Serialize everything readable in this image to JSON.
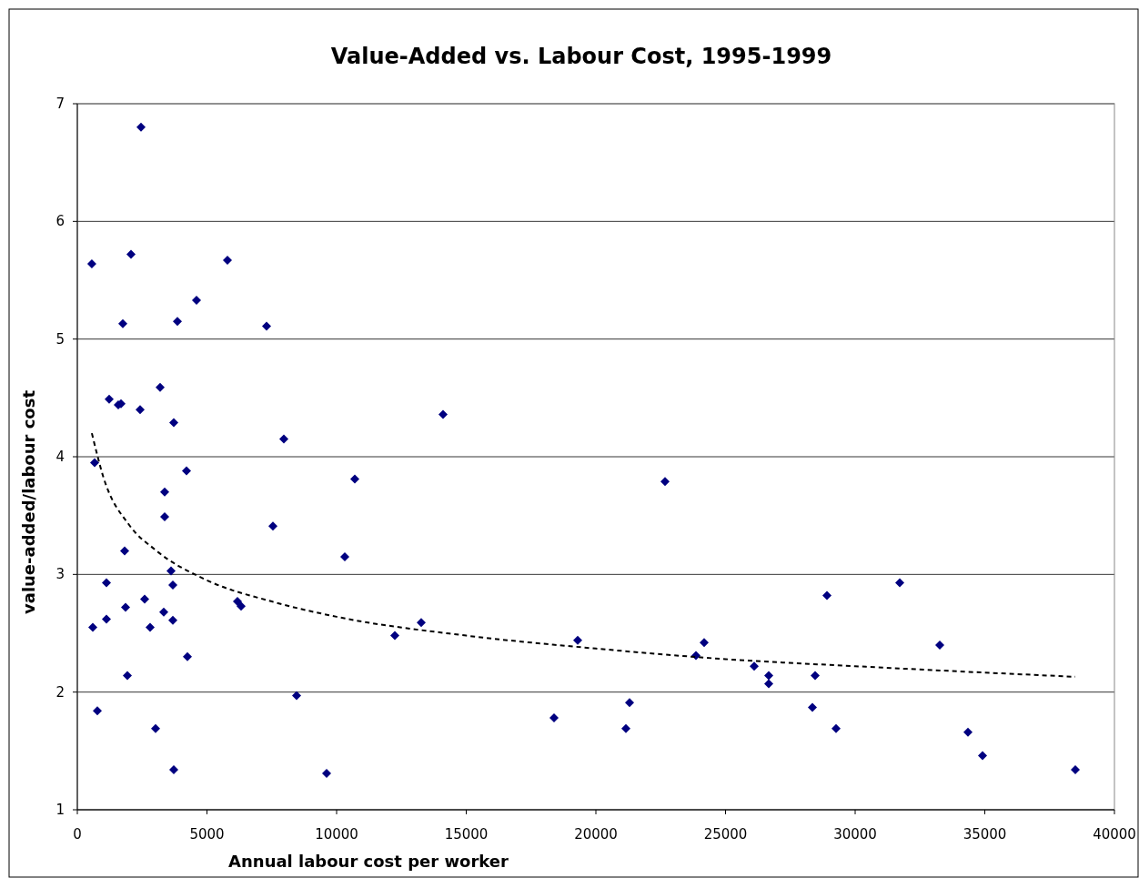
{
  "chart_data": {
    "type": "scatter",
    "title": "Value-Added vs. Labour Cost, 1995-1999",
    "xlabel": "Annual labour cost per worker",
    "ylabel": "value-added/labour cost",
    "xlim": [
      0,
      40000
    ],
    "xticks": [
      0,
      5000,
      10000,
      15000,
      20000,
      25000,
      30000,
      35000,
      40000
    ],
    "ylim": [
      1,
      7
    ],
    "yticks": [
      1,
      2,
      3,
      4,
      5,
      6,
      7
    ],
    "grid": "y",
    "series": [
      {
        "color": "#000080",
        "marker": "diamond",
        "x": [
          560,
          2456,
          2070,
          1754,
          1228,
          1579,
          1684,
          2421,
          667,
          1825,
          1123,
          596,
          1123,
          1860,
          772,
          1930,
          3193,
          3719,
          4211,
          3368,
          3368,
          3614,
          3684,
          3333,
          2596,
          2807,
          3684,
          4246,
          3018,
          3719,
          5789,
          4596,
          3860,
          7298,
          7965,
          7544,
          6175,
          6316,
          8456,
          9614,
          10702,
          10316,
          14105,
          13263,
          12246,
          18386,
          19298,
          21298,
          21158,
          22667,
          23860,
          24175,
          26105,
          26667,
          26667,
          28351,
          28456,
          28912,
          29263,
          31719,
          33263,
          34351,
          34912,
          38491
        ],
        "values": [
          5.64,
          6.8,
          5.72,
          5.13,
          4.49,
          4.44,
          4.45,
          4.4,
          3.95,
          3.2,
          2.93,
          2.55,
          2.62,
          2.72,
          1.84,
          2.14,
          4.59,
          4.29,
          3.88,
          3.7,
          3.49,
          3.03,
          2.91,
          2.68,
          2.79,
          2.55,
          2.61,
          2.3,
          1.69,
          1.34,
          5.67,
          5.33,
          5.15,
          5.11,
          4.15,
          3.41,
          2.77,
          2.73,
          1.97,
          1.31,
          3.81,
          3.15,
          4.36,
          2.59,
          2.48,
          1.78,
          2.44,
          1.91,
          1.69,
          3.79,
          2.31,
          2.42,
          2.22,
          2.14,
          2.07,
          1.87,
          2.14,
          2.82,
          1.69,
          2.93,
          2.4,
          1.66,
          1.46,
          1.34
        ]
      },
      {
        "type": "line",
        "color": "#000000",
        "line_style": "dashed",
        "marker": "none",
        "x": [
          560,
          1000,
          2000,
          3000,
          5000,
          7500,
          10000,
          15000,
          20000,
          25000,
          30000,
          38491
        ],
        "values": [
          4.2,
          3.83,
          3.42,
          3.21,
          2.95,
          2.77,
          2.64,
          2.48,
          2.37,
          2.28,
          2.22,
          2.13
        ]
      }
    ]
  }
}
